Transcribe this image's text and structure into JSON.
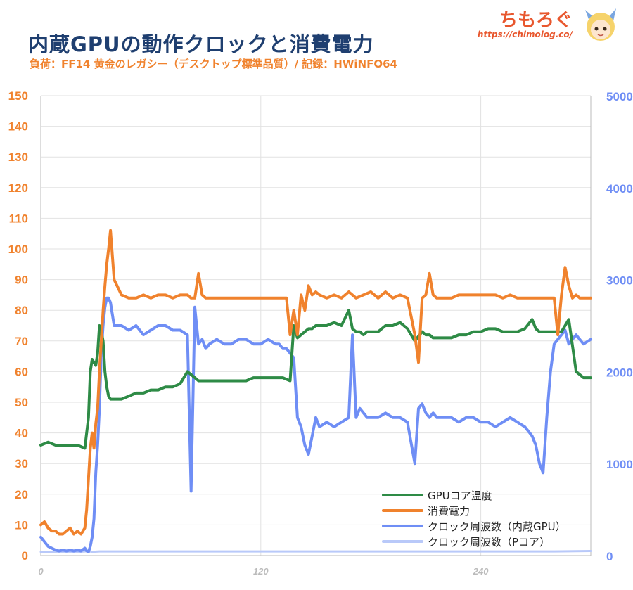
{
  "header": {
    "title": "内蔵GPUの動作クロックと消費電力",
    "subtitle": "負荷：FF14 黄金のレガシー（デスクトップ標準品質）/ 記録：HWiNFO64",
    "brand_name": "ちもろぐ",
    "brand_url": "https://chimolog.co/"
  },
  "colors": {
    "temp": "#2e8b46",
    "power": "#f0822d",
    "igpu": "#6f8ef5",
    "pcore": "#b9c9f9",
    "left_axis": "#f0822d",
    "right_axis": "#6f8ef5",
    "grid": "#e2e2e2"
  },
  "chart_data": {
    "type": "line",
    "x_ticks": [
      0,
      120,
      240
    ],
    "xlim": [
      0,
      300
    ],
    "y_left": {
      "ylim": [
        0,
        150
      ],
      "ticks": [
        0,
        10,
        20,
        30,
        40,
        50,
        60,
        70,
        80,
        90,
        100,
        110,
        120,
        130,
        140,
        150
      ]
    },
    "y_right": {
      "ylim": [
        0,
        5000
      ],
      "ticks": [
        0,
        1000,
        2000,
        3000,
        4000,
        5000
      ]
    },
    "legend_position": "bottom-right",
    "grid": true,
    "series": [
      {
        "name": "GPUコア温度",
        "axis": "left",
        "color": "#2e8b46",
        "x": [
          0,
          4,
          8,
          12,
          16,
          20,
          24,
          26,
          27,
          28,
          29,
          30,
          31,
          32,
          33,
          34,
          35,
          36,
          37,
          38,
          40,
          44,
          48,
          52,
          56,
          60,
          64,
          68,
          72,
          76,
          80,
          84,
          86,
          88,
          90,
          92,
          96,
          100,
          104,
          108,
          112,
          116,
          120,
          124,
          128,
          132,
          136,
          138,
          140,
          142,
          144,
          146,
          148,
          150,
          152,
          156,
          160,
          164,
          168,
          170,
          172,
          174,
          176,
          178,
          180,
          184,
          188,
          192,
          196,
          200,
          204,
          208,
          210,
          212,
          214,
          216,
          220,
          224,
          228,
          232,
          236,
          240,
          244,
          248,
          252,
          256,
          260,
          264,
          268,
          270,
          272,
          274,
          276,
          278,
          280,
          284,
          288,
          292,
          296,
          300
        ],
        "y": [
          36,
          37,
          36,
          36,
          36,
          36,
          35,
          45,
          60,
          64,
          63,
          62,
          66,
          75,
          73,
          70,
          60,
          55,
          52,
          51,
          51,
          51,
          52,
          53,
          53,
          54,
          54,
          55,
          55,
          56,
          60,
          58,
          57,
          57,
          57,
          57,
          57,
          57,
          57,
          57,
          57,
          58,
          58,
          58,
          58,
          58,
          57,
          75,
          71,
          72,
          73,
          74,
          74,
          75,
          75,
          75,
          76,
          75,
          80,
          74,
          73,
          73,
          72,
          73,
          73,
          73,
          75,
          75,
          76,
          74,
          70,
          73,
          72,
          72,
          71,
          71,
          71,
          71,
          72,
          72,
          73,
          73,
          74,
          74,
          73,
          73,
          73,
          74,
          77,
          74,
          73,
          73,
          73,
          73,
          73,
          73,
          77,
          60,
          58,
          58
        ]
      },
      {
        "name": "消費電力",
        "axis": "left",
        "color": "#f0822d",
        "x": [
          0,
          2,
          4,
          6,
          8,
          10,
          12,
          14,
          16,
          18,
          20,
          22,
          24,
          25,
          26,
          27,
          28,
          29,
          30,
          31,
          32,
          33,
          34,
          35,
          36,
          37,
          38,
          40,
          44,
          48,
          52,
          56,
          60,
          64,
          68,
          72,
          76,
          80,
          82,
          84,
          86,
          88,
          90,
          92,
          96,
          100,
          104,
          108,
          112,
          116,
          120,
          124,
          128,
          130,
          132,
          134,
          136,
          138,
          140,
          142,
          144,
          146,
          148,
          150,
          152,
          156,
          160,
          164,
          168,
          172,
          176,
          180,
          184,
          188,
          192,
          196,
          200,
          204,
          206,
          208,
          210,
          212,
          214,
          216,
          220,
          224,
          228,
          232,
          236,
          240,
          244,
          248,
          252,
          256,
          260,
          264,
          268,
          272,
          276,
          280,
          282,
          284,
          286,
          288,
          290,
          292,
          294,
          296,
          300
        ],
        "y": [
          10,
          11,
          9,
          8,
          8,
          7,
          7,
          8,
          9,
          7,
          8,
          7,
          9,
          15,
          25,
          35,
          40,
          35,
          43,
          48,
          60,
          70,
          80,
          88,
          95,
          100,
          106,
          90,
          85,
          84,
          84,
          85,
          84,
          85,
          85,
          84,
          85,
          85,
          84,
          84,
          92,
          85,
          84,
          84,
          84,
          84,
          84,
          84,
          84,
          84,
          84,
          84,
          84,
          84,
          84,
          84,
          72,
          80,
          72,
          85,
          80,
          88,
          85,
          86,
          85,
          84,
          85,
          84,
          86,
          84,
          85,
          86,
          84,
          86,
          84,
          85,
          84,
          72,
          63,
          84,
          85,
          92,
          85,
          84,
          84,
          84,
          85,
          85,
          85,
          85,
          85,
          85,
          84,
          85,
          84,
          84,
          84,
          84,
          84,
          84,
          72,
          85,
          94,
          88,
          84,
          85,
          84,
          84,
          84
        ]
      },
      {
        "name": "クロック周波数（内蔵GPU）",
        "axis": "right",
        "color": "#6f8ef5",
        "x": [
          0,
          2,
          4,
          6,
          8,
          10,
          12,
          14,
          16,
          18,
          20,
          22,
          24,
          25,
          26,
          27,
          28,
          29,
          30,
          31,
          32,
          33,
          34,
          35,
          36,
          37,
          38,
          40,
          44,
          48,
          52,
          56,
          60,
          64,
          68,
          72,
          76,
          80,
          82,
          84,
          86,
          88,
          90,
          92,
          96,
          100,
          104,
          108,
          112,
          116,
          120,
          124,
          128,
          130,
          132,
          134,
          136,
          138,
          140,
          142,
          144,
          146,
          148,
          150,
          152,
          156,
          160,
          164,
          168,
          170,
          172,
          174,
          176,
          178,
          180,
          184,
          188,
          192,
          196,
          200,
          204,
          206,
          208,
          210,
          212,
          214,
          216,
          220,
          224,
          228,
          232,
          236,
          240,
          244,
          248,
          252,
          256,
          260,
          264,
          266,
          268,
          270,
          272,
          274,
          276,
          278,
          280,
          282,
          284,
          286,
          288,
          290,
          292,
          296,
          300
        ],
        "y": [
          200,
          150,
          100,
          80,
          60,
          50,
          60,
          50,
          60,
          50,
          60,
          50,
          80,
          50,
          40,
          100,
          200,
          400,
          900,
          1200,
          1600,
          2200,
          2500,
          2700,
          2800,
          2800,
          2750,
          2500,
          2500,
          2450,
          2500,
          2400,
          2450,
          2500,
          2500,
          2450,
          2450,
          2400,
          700,
          2700,
          2300,
          2350,
          2250,
          2300,
          2350,
          2300,
          2300,
          2350,
          2350,
          2300,
          2300,
          2350,
          2300,
          2300,
          2250,
          2250,
          2200,
          2150,
          1500,
          1400,
          1200,
          1100,
          1300,
          1500,
          1400,
          1450,
          1400,
          1450,
          1500,
          2400,
          1500,
          1600,
          1550,
          1500,
          1500,
          1500,
          1550,
          1500,
          1500,
          1450,
          1000,
          1600,
          1650,
          1550,
          1500,
          1550,
          1500,
          1500,
          1500,
          1450,
          1500,
          1500,
          1450,
          1450,
          1400,
          1450,
          1500,
          1450,
          1400,
          1350,
          1300,
          1200,
          1000,
          900,
          1500,
          2000,
          2300,
          2350,
          2400,
          2450,
          2300,
          2350,
          2400,
          2300,
          2350
        ]
      },
      {
        "name": "クロック周波数（Pコア）",
        "axis": "right",
        "color": "#b9c9f9",
        "x": [
          0,
          20,
          24,
          26,
          28,
          32,
          40,
          60,
          80,
          100,
          120,
          140,
          160,
          180,
          200,
          220,
          240,
          260,
          280,
          300
        ],
        "y": [
          40,
          40,
          45,
          50,
          40,
          45,
          45,
          45,
          45,
          45,
          45,
          45,
          45,
          45,
          45,
          45,
          45,
          45,
          45,
          50
        ]
      }
    ]
  }
}
